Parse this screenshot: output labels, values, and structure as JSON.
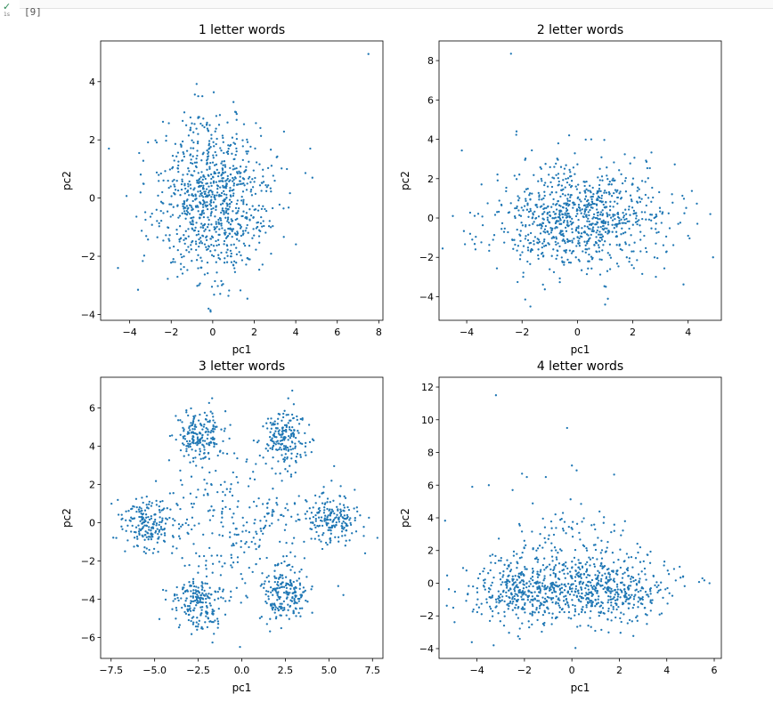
{
  "cell": {
    "status_icon": "check-icon",
    "exec_time": "1s",
    "exec_count": "[9]"
  },
  "colors": {
    "points": "#1f77b4",
    "axes": "#000000"
  },
  "chart_data": [
    {
      "type": "scatter",
      "title": "1 letter words",
      "xlabel": "pc1",
      "ylabel": "pc2",
      "xlim": [
        -5.4,
        8.2
      ],
      "ylim": [
        -4.2,
        5.4
      ],
      "xticks": [
        -4,
        -2,
        0,
        2,
        4,
        6,
        8
      ],
      "yticks": [
        -4,
        -2,
        0,
        2,
        4
      ],
      "xtick_labels": [
        "−4",
        "−2",
        "0",
        "2",
        "4",
        "6",
        "8"
      ],
      "ytick_labels": [
        "−4",
        "−2",
        "0",
        "2",
        "4"
      ],
      "cloud": {
        "n": 900,
        "center": [
          0.0,
          0.0
        ],
        "std": [
          1.4,
          1.3
        ]
      },
      "points": [
        [
          7.5,
          4.95
        ],
        [
          -5.0,
          1.7
        ],
        [
          4.8,
          0.7
        ],
        [
          4.7,
          1.7
        ],
        [
          -3.6,
          -3.15
        ],
        [
          -0.2,
          -3.8
        ],
        [
          -0.1,
          -3.9
        ],
        [
          1.0,
          3.3
        ],
        [
          -0.5,
          3.5
        ],
        [
          -0.7,
          3.5
        ]
      ]
    },
    {
      "type": "scatter",
      "title": "2 letter words",
      "xlabel": "pc1",
      "ylabel": "pc2",
      "xlim": [
        -5.0,
        5.2
      ],
      "ylim": [
        -5.2,
        9.0
      ],
      "xticks": [
        -4,
        -2,
        0,
        2,
        4
      ],
      "yticks": [
        -4,
        -2,
        0,
        2,
        4,
        6,
        8
      ],
      "xtick_labels": [
        "−4",
        "−2",
        "0",
        "2",
        "4"
      ],
      "ytick_labels": [
        "−4",
        "−2",
        "0",
        "2",
        "4",
        "6",
        "8"
      ],
      "cloud": {
        "n": 900,
        "center": [
          0.0,
          0.0
        ],
        "std": [
          1.5,
          1.3
        ]
      },
      "points": [
        [
          -2.4,
          8.35
        ],
        [
          -0.3,
          4.2
        ],
        [
          0.5,
          4.0
        ],
        [
          -2.2,
          4.4
        ],
        [
          4.9,
          -2.0
        ],
        [
          4.8,
          0.2
        ],
        [
          -3.8,
          -1.1
        ],
        [
          -4.5,
          0.1
        ],
        [
          1.0,
          -4.4
        ],
        [
          -1.7,
          -4.5
        ]
      ]
    },
    {
      "type": "scatter",
      "title": "3 letter words",
      "xlabel": "pc1",
      "ylabel": "pc2",
      "xlim": [
        -8.1,
        8.1
      ],
      "ylim": [
        -7.1,
        7.6
      ],
      "xticks": [
        -7.5,
        -5.0,
        -2.5,
        0.0,
        2.5,
        5.0,
        7.5
      ],
      "yticks": [
        -6,
        -4,
        -2,
        0,
        2,
        4,
        6
      ],
      "xtick_labels": [
        "−7.5",
        "−5.0",
        "−2.5",
        "0.0",
        "2.5",
        "5.0",
        "7.5"
      ],
      "ytick_labels": [
        "−6",
        "−4",
        "−2",
        "0",
        "2",
        "4",
        "6"
      ],
      "clusters": [
        {
          "n": 190,
          "center": [
            -2.4,
            4.5
          ],
          "std": [
            0.7,
            0.7
          ]
        },
        {
          "n": 190,
          "center": [
            2.4,
            4.4
          ],
          "std": [
            0.7,
            0.7
          ]
        },
        {
          "n": 190,
          "center": [
            -5.3,
            -0.2
          ],
          "std": [
            0.8,
            0.7
          ]
        },
        {
          "n": 190,
          "center": [
            5.3,
            0.1
          ],
          "std": [
            0.8,
            0.7
          ]
        },
        {
          "n": 200,
          "center": [
            -2.5,
            -4.1
          ],
          "std": [
            0.7,
            0.7
          ]
        },
        {
          "n": 200,
          "center": [
            2.5,
            -3.7
          ],
          "std": [
            0.7,
            0.7
          ]
        },
        {
          "n": 240,
          "center": [
            0.0,
            0.0
          ],
          "std": [
            2.3,
            1.9
          ]
        }
      ],
      "points": [
        [
          -7.2,
          -0.8
        ],
        [
          -6.7,
          -1.5
        ],
        [
          7.0,
          -0.7
        ],
        [
          -0.1,
          -6.5
        ],
        [
          2.9,
          6.9
        ],
        [
          -1.7,
          6.5
        ]
      ]
    },
    {
      "type": "scatter",
      "title": "4 letter words",
      "xlabel": "pc1",
      "ylabel": "pc2",
      "xlim": [
        -5.6,
        6.3
      ],
      "ylim": [
        -4.6,
        12.6
      ],
      "xticks": [
        -4,
        -2,
        0,
        2,
        4,
        6
      ],
      "yticks": [
        -4,
        -2,
        0,
        2,
        4,
        6,
        8,
        10,
        12
      ],
      "xtick_labels": [
        "−4",
        "−2",
        "0",
        "2",
        "4",
        "6"
      ],
      "ytick_labels": [
        "−4",
        "−2",
        "0",
        "2",
        "4",
        "6",
        "8",
        "10",
        "12"
      ],
      "clusters": [
        {
          "n": 420,
          "center": [
            -1.8,
            -0.4
          ],
          "std": [
            1.2,
            1.0
          ]
        },
        {
          "n": 420,
          "center": [
            1.6,
            -0.4
          ],
          "std": [
            1.2,
            1.0
          ]
        },
        {
          "n": 160,
          "center": [
            -0.2,
            1.8
          ],
          "std": [
            1.6,
            1.6
          ]
        }
      ],
      "points": [
        [
          -3.2,
          11.5
        ],
        [
          -0.2,
          9.5
        ],
        [
          0.0,
          7.2
        ],
        [
          0.2,
          6.9
        ],
        [
          -1.1,
          6.5
        ],
        [
          -2.1,
          6.7
        ],
        [
          -1.9,
          6.5
        ],
        [
          -3.5,
          6.0
        ],
        [
          -4.2,
          5.9
        ],
        [
          -2.5,
          5.7
        ],
        [
          5.8,
          0.0
        ],
        [
          5.5,
          0.3
        ],
        [
          -5.0,
          -1.5
        ],
        [
          -3.3,
          -3.8
        ],
        [
          -2.2,
          -3.4
        ],
        [
          -1.8,
          -2.7
        ]
      ]
    }
  ]
}
